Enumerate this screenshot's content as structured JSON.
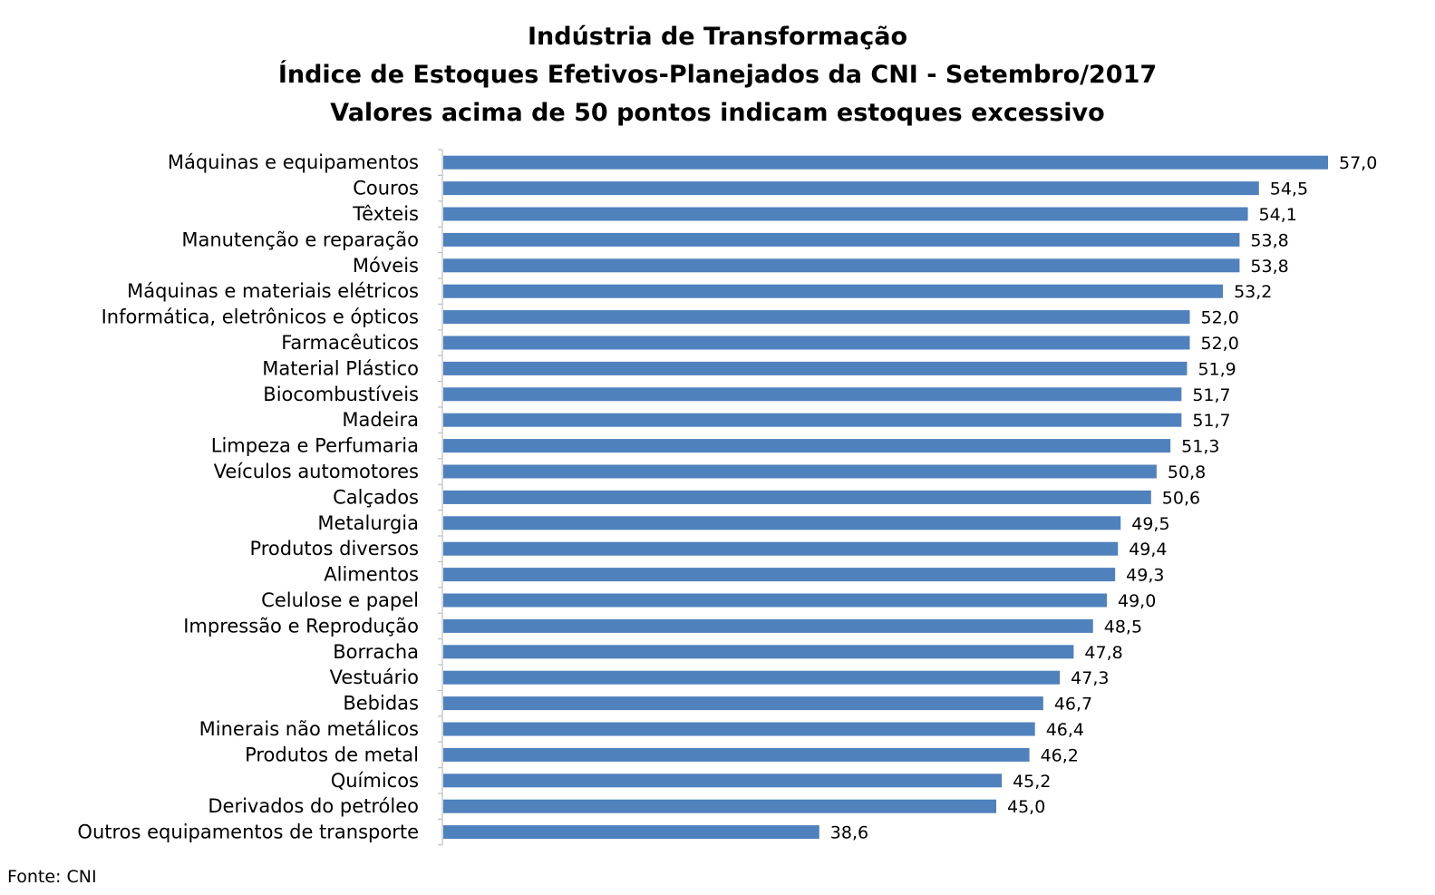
{
  "chart_data": {
    "type": "bar",
    "orientation": "horizontal",
    "title": [
      "Indústria de Transformação",
      "Índice de Estoques Efetivos-Planejados da CNI - Setembro/2017",
      "Valores acima de 50 pontos indicam estoques excessivo"
    ],
    "categories": [
      "Máquinas e equipamentos",
      "Couros",
      "Têxteis",
      "Manutenção e reparação",
      "Móveis",
      "Máquinas e materiais elétricos",
      "Informática, eletrônicos e ópticos",
      "Farmacêuticos",
      "Material Plástico",
      "Biocombustíveis",
      "Madeira",
      "Limpeza e Perfumaria",
      "Veículos automotores",
      "Calçados",
      "Metalurgia",
      "Produtos diversos",
      "Alimentos",
      "Celulose e papel",
      "Impressão e Reprodução",
      "Borracha",
      "Vestuário",
      "Bebidas",
      "Minerais não metálicos",
      "Produtos de metal",
      "Químicos",
      "Derivados do petróleo",
      "Outros equipamentos de transporte"
    ],
    "values": [
      57.0,
      54.5,
      54.1,
      53.8,
      53.8,
      53.2,
      52.0,
      52.0,
      51.9,
      51.7,
      51.7,
      51.3,
      50.8,
      50.6,
      49.5,
      49.4,
      49.3,
      49.0,
      48.5,
      47.8,
      47.3,
      46.7,
      46.4,
      46.2,
      45.2,
      45.0,
      38.6
    ],
    "value_labels": [
      "57,0",
      "54,5",
      "54,1",
      "53,8",
      "53,8",
      "53,2",
      "52,0",
      "52,0",
      "51,9",
      "51,7",
      "51,7",
      "51,3",
      "50,8",
      "50,6",
      "49,5",
      "49,4",
      "49,3",
      "49,0",
      "48,5",
      "47,8",
      "47,3",
      "46,7",
      "46,4",
      "46,2",
      "45,2",
      "45,0",
      "38,6"
    ],
    "xlim": [
      25,
      57
    ],
    "grid": false,
    "legend": "none",
    "bar_color": "#4f81bd",
    "axis_color": "#bfbfbf",
    "source": "Fonte: CNI"
  }
}
